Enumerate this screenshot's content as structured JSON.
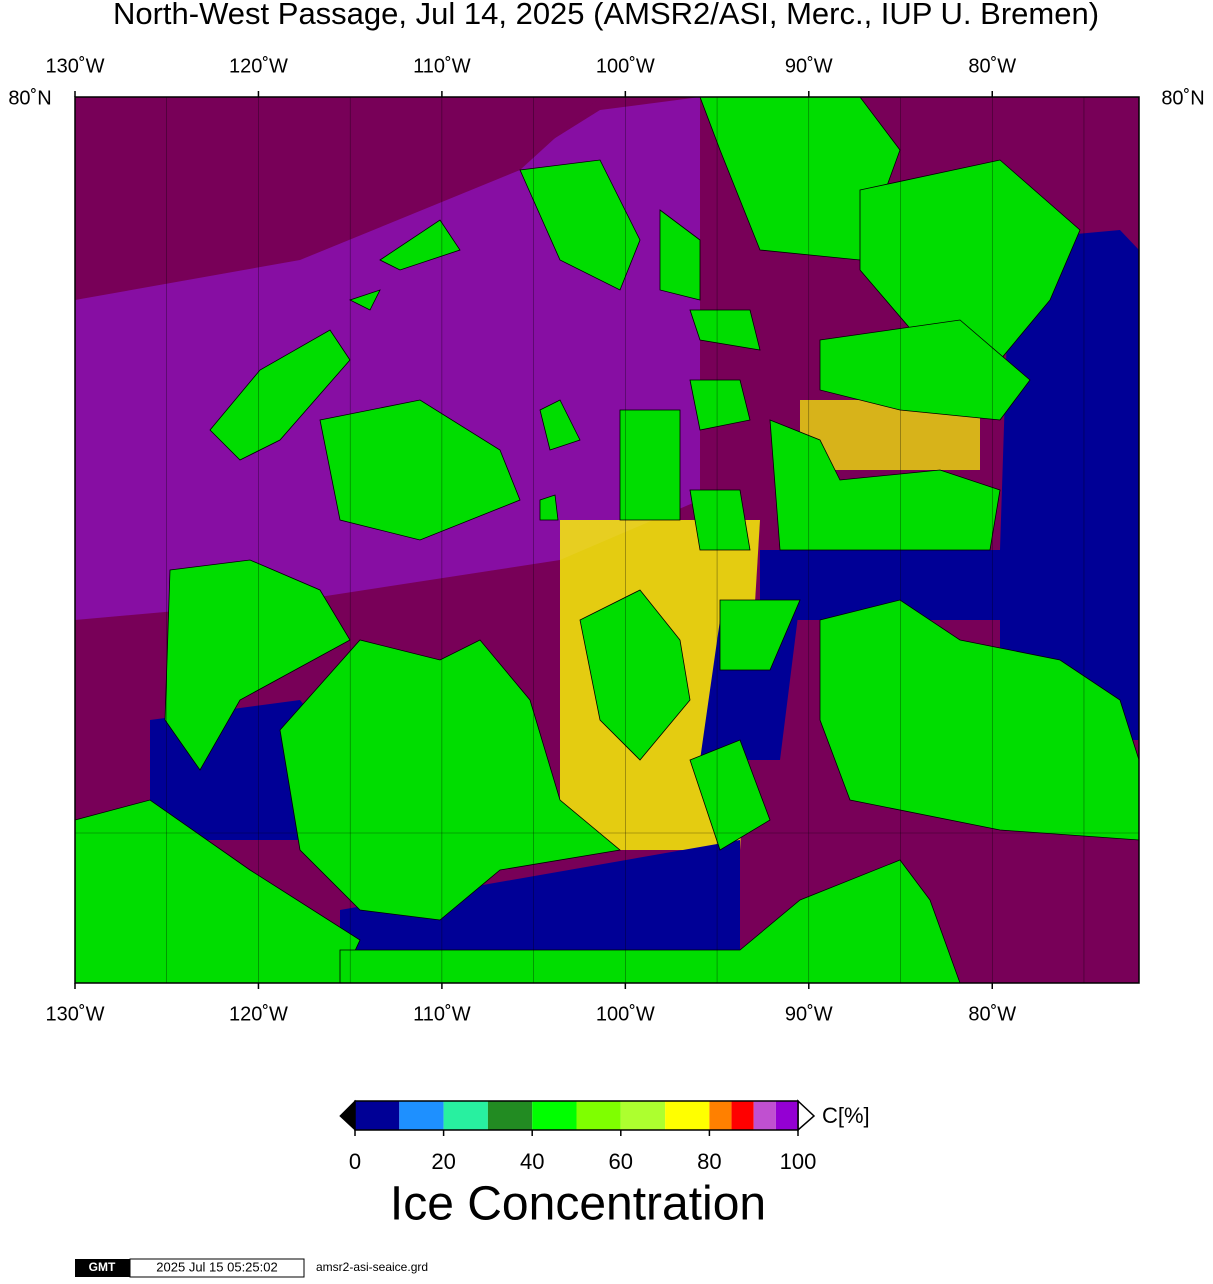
{
  "title": "North-West Passage, Jul 14, 2025 (AMSR2/ASI, Merc., IUP U. Bremen)",
  "map": {
    "lon_lim": [
      -130,
      -72
    ],
    "lon_ticks": [
      {
        "value": -130,
        "label": "130˚W"
      },
      {
        "value": -120,
        "label": "120˚W"
      },
      {
        "value": -110,
        "label": "110˚W"
      },
      {
        "value": -100,
        "label": "100˚W"
      },
      {
        "value": -90,
        "label": "90˚W"
      },
      {
        "value": -80,
        "label": "80˚W"
      }
    ],
    "lon_gridlines": [
      -125,
      -120,
      -115,
      -110,
      -105,
      -100,
      -95,
      -90,
      -85,
      -80,
      -75
    ],
    "lat_label": "80˚N"
  },
  "colorbar": {
    "title": "Ice Concentration",
    "unit": "C[%]",
    "lim": [
      0,
      100
    ],
    "ticks": [
      0,
      20,
      40,
      60,
      80,
      100
    ],
    "bounds": [
      0,
      10,
      20,
      30,
      40,
      50,
      60,
      70,
      80,
      85,
      90,
      95,
      100
    ],
    "colors": [
      "#000096",
      "#1e90ff",
      "#28f0a0",
      "#228b22",
      "#00ff00",
      "#7fff00",
      "#adff2f",
      "#ffff00",
      "#ff8000",
      "#ff0000",
      "#c050d0",
      "#9400d3"
    ]
  },
  "footer": {
    "logo": "GMT",
    "timestamp": "2025 Jul 15 05:25:02",
    "file": "amsr2-asi-seaice.grd"
  }
}
